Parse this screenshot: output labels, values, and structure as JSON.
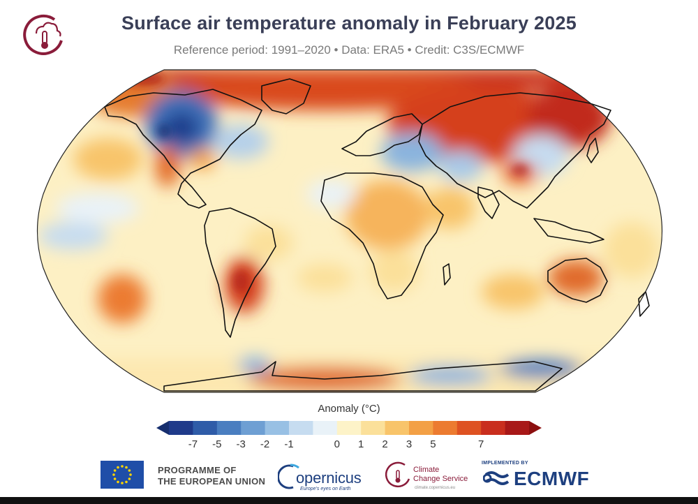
{
  "title": "Surface air temperature anomaly in February 2025",
  "subtitle": "Reference period: 1991–2020 • Data: ERA5 • Credit: C3S/ECMWF",
  "colorbar": {
    "label": "Anomaly (°C)",
    "ticks": [
      "-7",
      "-5",
      "-3",
      "-2",
      "-1",
      "0",
      "1",
      "2",
      "3",
      "5",
      "7"
    ],
    "colors": [
      "#1f3a8a",
      "#2f5ca8",
      "#4a7ec0",
      "#6e9fd3",
      "#98c0e4",
      "#c6dcf0",
      "#e9f2f8",
      "#fdf3c8",
      "#fbe09a",
      "#f8c46a",
      "#f3a045",
      "#ec7b30",
      "#de5222",
      "#c92e1e",
      "#a81818"
    ],
    "low_arrow_color": "#162e6e",
    "high_arrow_color": "#8c0f0f"
  },
  "footer": {
    "eu_line1": "PROGRAMME OF",
    "eu_line2": "THE EUROPEAN UNION",
    "copernicus_name": "opernicus",
    "copernicus_tag": "Europe's eyes on Earth",
    "c3s_line1": "Climate",
    "c3s_line2": "Change Service",
    "c3s_url": "climate.copernicus.eu",
    "ecmwf_impl": "IMPLEMENTED BY",
    "ecmwf_name": "ECMWF"
  },
  "colors": {
    "title": "#3a3f57",
    "brand_red": "#8a1c3a",
    "copernicus_blue": "#1d3f7f",
    "eu_blue": "#1f4ea8",
    "eu_star": "#ffd500"
  },
  "icons": [
    "c3s-thermometer-cloud-icon",
    "eu-flag-icon",
    "copernicus-ring-icon",
    "ecmwf-wave-icon"
  ]
}
